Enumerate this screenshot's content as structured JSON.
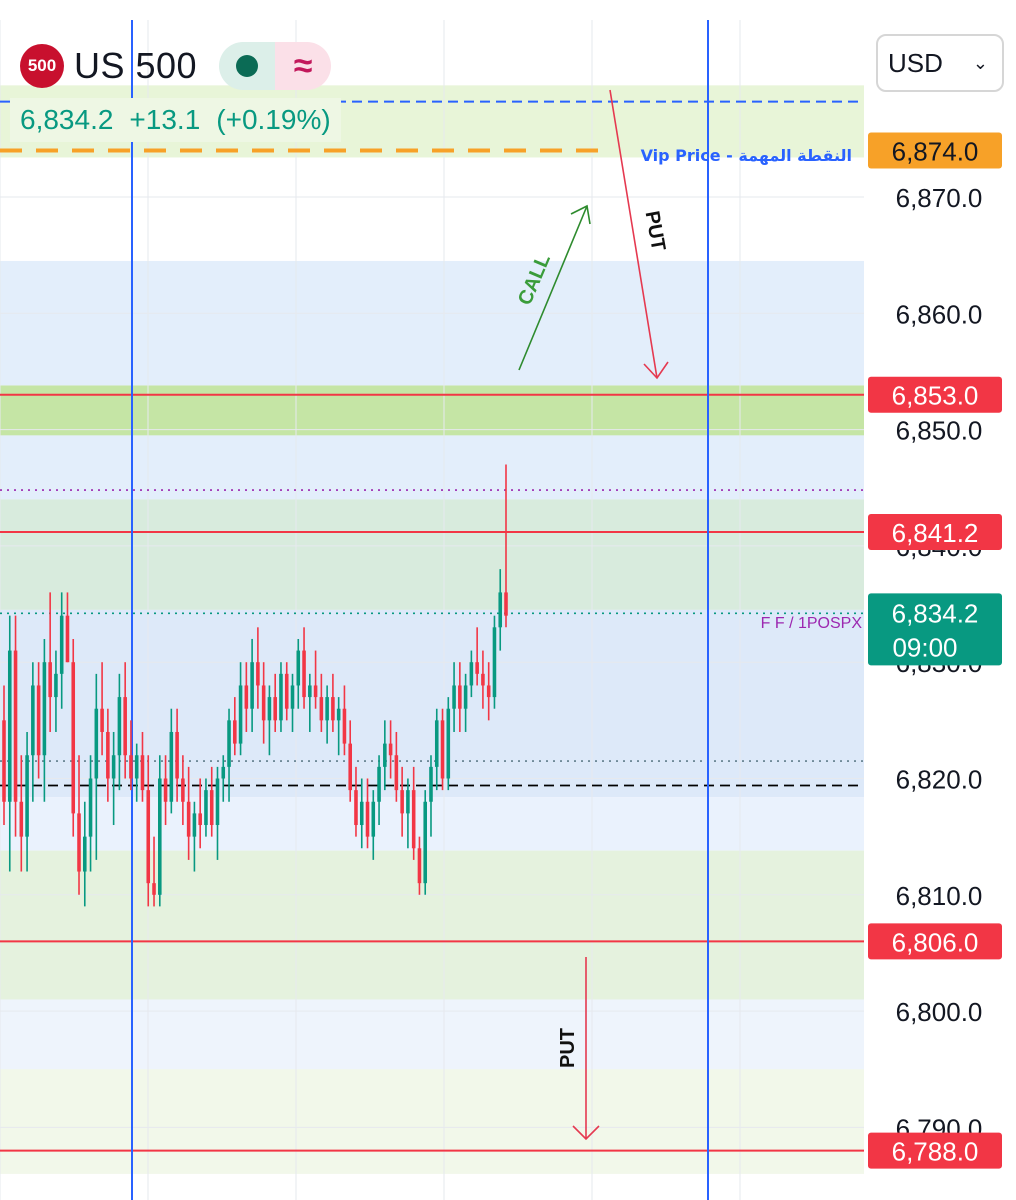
{
  "header": {
    "symbol_badge": "500",
    "symbol_name": "US 500",
    "quote_price": "6,834.2",
    "quote_change": "+13.1",
    "quote_change_pct": "(+0.19%)",
    "status_dot_color": "#0b6b55",
    "wave_symbol": "≈"
  },
  "currency_select": {
    "value": "USD",
    "chevron_icon": "chevron-down-icon"
  },
  "chart_data": {
    "type": "candlestick",
    "ylim": [
      6786,
      6882
    ],
    "y_ticks": [
      "6,870.0",
      "6,860.0",
      "6,850.0",
      "6,820.0",
      "6,810.0",
      "6,800.0",
      "6,790.0"
    ],
    "y_tick_values": [
      6870,
      6860,
      6850,
      6820,
      6810,
      6800,
      6790
    ],
    "overlapped_ticks": [
      "6,840.0",
      "6,830.0"
    ],
    "overlapped_tick_values": [
      6840,
      6830
    ],
    "price_tags": [
      {
        "label": "6,874.0",
        "value": 6874.0,
        "color": "#f7a128"
      },
      {
        "label": "6,853.0",
        "value": 6853.0,
        "color": "#f23645"
      },
      {
        "label": "6,841.2",
        "value": 6841.2,
        "color": "#f23645"
      },
      {
        "label": "6,806.0",
        "value": 6806.0,
        "color": "#f23645"
      },
      {
        "label": "6,788.0",
        "value": 6788.0,
        "color": "#f23645"
      }
    ],
    "current_price": {
      "label": "6,834.2",
      "value": 6834.2,
      "countdown": "09:00",
      "color": "#089981"
    },
    "horizontal_lines": [
      {
        "value": 6874.0,
        "color": "#f7a128",
        "style": "dashed"
      },
      {
        "value": 6878.2,
        "color": "#2962ff",
        "style": "dashed"
      },
      {
        "value": 6853.0,
        "color": "#f23645",
        "style": "solid"
      },
      {
        "value": 6841.2,
        "color": "#f23645",
        "style": "solid"
      },
      {
        "value": 6806.0,
        "color": "#f23645",
        "style": "solid"
      },
      {
        "value": 6788.0,
        "color": "#f23645",
        "style": "solid"
      },
      {
        "value": 6844.8,
        "color": "#9c27b0",
        "style": "dotted"
      },
      {
        "value": 6834.2,
        "color": "#089981",
        "style": "dotted"
      },
      {
        "value": 6821.5,
        "color": "#607d8b",
        "style": "dotted"
      },
      {
        "value": 6819.4,
        "color": "#000000",
        "style": "dashed"
      }
    ],
    "zones": [
      {
        "from": 6873.4,
        "to": 6879.6,
        "color": "#e8f5d8"
      },
      {
        "from": 6849.5,
        "to": 6853.8,
        "color": "#c5e5a5"
      },
      {
        "from": 6853.8,
        "to": 6864.5,
        "color": "#e3eefb"
      },
      {
        "from": 6844.0,
        "to": 6849.5,
        "color": "#e3eefb"
      },
      {
        "from": 6834.5,
        "to": 6844.0,
        "color": "#d8ebdd"
      },
      {
        "from": 6818.4,
        "to": 6834.5,
        "color": "#dde9f9"
      },
      {
        "from": 6813.8,
        "to": 6818.4,
        "color": "#eaf2fd"
      },
      {
        "from": 6801.0,
        "to": 6813.8,
        "color": "#e5f2de"
      },
      {
        "from": 6790.0,
        "to": 6801.0,
        "color": "#eef4fc"
      },
      {
        "from": 6786.0,
        "to": 6795.0,
        "color": "#f2f8ea"
      }
    ],
    "labels": {
      "vip": "Vip Price - النقطة المهمة",
      "indicator": "F F / 1POSPX",
      "call": "CALL",
      "put_top": "PUT",
      "put_bottom": "PUT"
    },
    "candles": [
      {
        "o": 6825,
        "h": 6828,
        "l": 6816,
        "c": 6818
      },
      {
        "o": 6818,
        "h": 6834,
        "l": 6812,
        "c": 6831
      },
      {
        "o": 6831,
        "h": 6834,
        "l": 6815,
        "c": 6818
      },
      {
        "o": 6818,
        "h": 6822,
        "l": 6812,
        "c": 6815
      },
      {
        "o": 6815,
        "h": 6824,
        "l": 6812,
        "c": 6822
      },
      {
        "o": 6822,
        "h": 6830,
        "l": 6818,
        "c": 6828
      },
      {
        "o": 6828,
        "h": 6830,
        "l": 6820,
        "c": 6822
      },
      {
        "o": 6822,
        "h": 6832,
        "l": 6818,
        "c": 6830
      },
      {
        "o": 6830,
        "h": 6836,
        "l": 6824,
        "c": 6827
      },
      {
        "o": 6827,
        "h": 6831,
        "l": 6824,
        "c": 6829
      },
      {
        "o": 6829,
        "h": 6836,
        "l": 6826,
        "c": 6834
      },
      {
        "o": 6834,
        "h": 6836,
        "l": 6830,
        "c": 6830
      },
      {
        "o": 6830,
        "h": 6832,
        "l": 6815,
        "c": 6817
      },
      {
        "o": 6817,
        "h": 6822,
        "l": 6810,
        "c": 6812
      },
      {
        "o": 6812,
        "h": 6818,
        "l": 6809,
        "c": 6815
      },
      {
        "o": 6815,
        "h": 6822,
        "l": 6812,
        "c": 6820
      },
      {
        "o": 6820,
        "h": 6829,
        "l": 6813,
        "c": 6826
      },
      {
        "o": 6826,
        "h": 6830,
        "l": 6822,
        "c": 6824
      },
      {
        "o": 6824,
        "h": 6826,
        "l": 6818,
        "c": 6820
      },
      {
        "o": 6820,
        "h": 6824,
        "l": 6816,
        "c": 6822
      },
      {
        "o": 6822,
        "h": 6829,
        "l": 6819,
        "c": 6827
      },
      {
        "o": 6827,
        "h": 6830,
        "l": 6820,
        "c": 6822
      },
      {
        "o": 6822,
        "h": 6825,
        "l": 6819,
        "c": 6820
      },
      {
        "o": 6820,
        "h": 6823,
        "l": 6818,
        "c": 6822
      },
      {
        "o": 6822,
        "h": 6824,
        "l": 6818,
        "c": 6819
      },
      {
        "o": 6819,
        "h": 6822,
        "l": 6809,
        "c": 6811
      },
      {
        "o": 6811,
        "h": 6815,
        "l": 6809,
        "c": 6810
      },
      {
        "o": 6810,
        "h": 6822,
        "l": 6809,
        "c": 6820
      },
      {
        "o": 6820,
        "h": 6822,
        "l": 6816,
        "c": 6818
      },
      {
        "o": 6818,
        "h": 6826,
        "l": 6817,
        "c": 6824
      },
      {
        "o": 6824,
        "h": 6826,
        "l": 6818,
        "c": 6820
      },
      {
        "o": 6820,
        "h": 6822,
        "l": 6816,
        "c": 6818
      },
      {
        "o": 6818,
        "h": 6821,
        "l": 6813,
        "c": 6815
      },
      {
        "o": 6815,
        "h": 6818,
        "l": 6812,
        "c": 6817
      },
      {
        "o": 6817,
        "h": 6820,
        "l": 6814,
        "c": 6816
      },
      {
        "o": 6816,
        "h": 6820,
        "l": 6815,
        "c": 6819
      },
      {
        "o": 6819,
        "h": 6821,
        "l": 6815,
        "c": 6816
      },
      {
        "o": 6816,
        "h": 6821,
        "l": 6813,
        "c": 6820
      },
      {
        "o": 6820,
        "h": 6822,
        "l": 6818,
        "c": 6821
      },
      {
        "o": 6821,
        "h": 6826,
        "l": 6818,
        "c": 6825
      },
      {
        "o": 6825,
        "h": 6827,
        "l": 6822,
        "c": 6823
      },
      {
        "o": 6823,
        "h": 6830,
        "l": 6822,
        "c": 6828
      },
      {
        "o": 6828,
        "h": 6830,
        "l": 6824,
        "c": 6826
      },
      {
        "o": 6826,
        "h": 6832,
        "l": 6824,
        "c": 6830
      },
      {
        "o": 6830,
        "h": 6833,
        "l": 6826,
        "c": 6828
      },
      {
        "o": 6828,
        "h": 6830,
        "l": 6823,
        "c": 6825
      },
      {
        "o": 6825,
        "h": 6828,
        "l": 6822,
        "c": 6827
      },
      {
        "o": 6827,
        "h": 6829,
        "l": 6824,
        "c": 6825
      },
      {
        "o": 6825,
        "h": 6830,
        "l": 6824,
        "c": 6829
      },
      {
        "o": 6829,
        "h": 6830,
        "l": 6825,
        "c": 6826
      },
      {
        "o": 6826,
        "h": 6829,
        "l": 6824,
        "c": 6828
      },
      {
        "o": 6828,
        "h": 6832,
        "l": 6826,
        "c": 6831
      },
      {
        "o": 6831,
        "h": 6833,
        "l": 6826,
        "c": 6827
      },
      {
        "o": 6827,
        "h": 6829,
        "l": 6824,
        "c": 6828
      },
      {
        "o": 6828,
        "h": 6831,
        "l": 6826,
        "c": 6827
      },
      {
        "o": 6827,
        "h": 6829,
        "l": 6824,
        "c": 6825
      },
      {
        "o": 6825,
        "h": 6828,
        "l": 6823,
        "c": 6827
      },
      {
        "o": 6827,
        "h": 6829,
        "l": 6824,
        "c": 6825
      },
      {
        "o": 6825,
        "h": 6827,
        "l": 6822,
        "c": 6826
      },
      {
        "o": 6826,
        "h": 6828,
        "l": 6822,
        "c": 6823
      },
      {
        "o": 6823,
        "h": 6825,
        "l": 6818,
        "c": 6819
      },
      {
        "o": 6819,
        "h": 6821,
        "l": 6815,
        "c": 6816
      },
      {
        "o": 6816,
        "h": 6820,
        "l": 6814,
        "c": 6818
      },
      {
        "o": 6818,
        "h": 6820,
        "l": 6814,
        "c": 6815
      },
      {
        "o": 6815,
        "h": 6819,
        "l": 6813,
        "c": 6818
      },
      {
        "o": 6818,
        "h": 6822,
        "l": 6816,
        "c": 6821
      },
      {
        "o": 6821,
        "h": 6825,
        "l": 6819,
        "c": 6823
      },
      {
        "o": 6823,
        "h": 6825,
        "l": 6820,
        "c": 6822
      },
      {
        "o": 6822,
        "h": 6824,
        "l": 6818,
        "c": 6819
      },
      {
        "o": 6819,
        "h": 6821,
        "l": 6815,
        "c": 6817
      },
      {
        "o": 6817,
        "h": 6820,
        "l": 6814,
        "c": 6819
      },
      {
        "o": 6819,
        "h": 6821,
        "l": 6813,
        "c": 6814
      },
      {
        "o": 6814,
        "h": 6815,
        "l": 6810,
        "c": 6811
      },
      {
        "o": 6811,
        "h": 6819,
        "l": 6810,
        "c": 6818
      },
      {
        "o": 6818,
        "h": 6822,
        "l": 6815,
        "c": 6821
      },
      {
        "o": 6821,
        "h": 6826,
        "l": 6819,
        "c": 6825
      },
      {
        "o": 6825,
        "h": 6826,
        "l": 6819,
        "c": 6820
      },
      {
        "o": 6820,
        "h": 6827,
        "l": 6819,
        "c": 6826
      },
      {
        "o": 6826,
        "h": 6830,
        "l": 6824,
        "c": 6828
      },
      {
        "o": 6828,
        "h": 6830,
        "l": 6824,
        "c": 6826
      },
      {
        "o": 6826,
        "h": 6829,
        "l": 6824,
        "c": 6828
      },
      {
        "o": 6828,
        "h": 6831,
        "l": 6827,
        "c": 6830
      },
      {
        "o": 6830,
        "h": 6833,
        "l": 6828,
        "c": 6829
      },
      {
        "o": 6829,
        "h": 6831,
        "l": 6826,
        "c": 6828
      },
      {
        "o": 6828,
        "h": 6830,
        "l": 6825,
        "c": 6827
      },
      {
        "o": 6827,
        "h": 6834,
        "l": 6826,
        "c": 6833
      },
      {
        "o": 6833,
        "h": 6838,
        "l": 6831,
        "c": 6836
      },
      {
        "o": 6836,
        "h": 6847,
        "l": 6833,
        "c": 6834
      }
    ]
  }
}
